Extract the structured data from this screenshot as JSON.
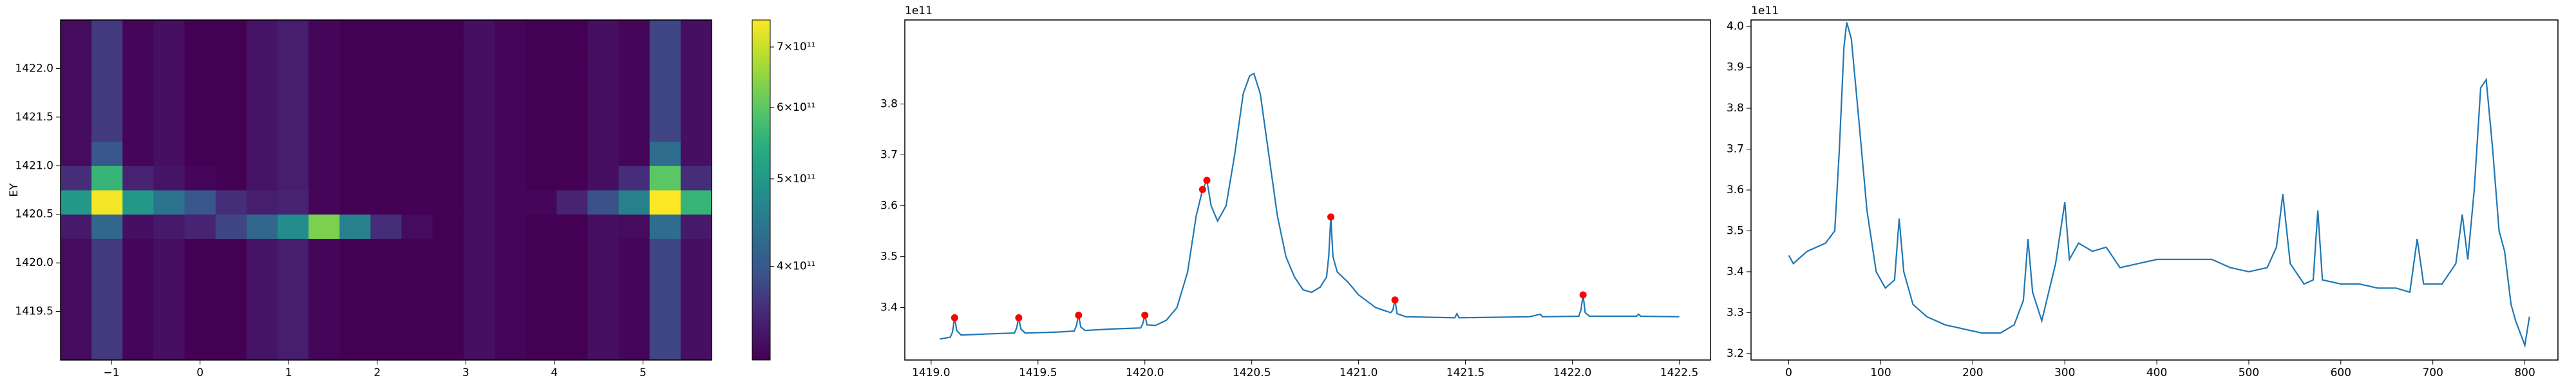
{
  "chart_data": [
    {
      "type": "heatmap",
      "ylabel": "EY",
      "xbins": [
        -1.575,
        -1.225,
        -0.875,
        -0.525,
        -0.175,
        0.175,
        0.525,
        0.875,
        1.225,
        1.575,
        1.925,
        2.275,
        2.625,
        2.975,
        3.325,
        3.675,
        4.025,
        4.375,
        4.725,
        5.075,
        5.425,
        5.775
      ],
      "ybins": [
        1419.0,
        1419.25,
        1419.5,
        1419.75,
        1420.0,
        1420.25,
        1420.5,
        1420.75,
        1421.0,
        1421.25,
        1421.5,
        1421.75,
        1422.0,
        1422.25,
        1422.5
      ],
      "z": [
        [
          325000000000.0,
          370000000000.0,
          320000000000.0,
          330000000000.0,
          315000000000.0,
          315000000000.0,
          335000000000.0,
          345000000000.0,
          320000000000.0,
          315000000000.0,
          315000000000.0,
          315000000000.0,
          315000000000.0,
          330000000000.0,
          320000000000.0,
          315000000000.0,
          315000000000.0,
          330000000000.0,
          320000000000.0,
          380000000000.0,
          330000000000.0
        ],
        [
          325000000000.0,
          370000000000.0,
          320000000000.0,
          330000000000.0,
          315000000000.0,
          315000000000.0,
          335000000000.0,
          345000000000.0,
          320000000000.0,
          315000000000.0,
          315000000000.0,
          315000000000.0,
          315000000000.0,
          330000000000.0,
          320000000000.0,
          315000000000.0,
          315000000000.0,
          330000000000.0,
          320000000000.0,
          380000000000.0,
          330000000000.0
        ],
        [
          325000000000.0,
          370000000000.0,
          320000000000.0,
          330000000000.0,
          315000000000.0,
          315000000000.0,
          335000000000.0,
          345000000000.0,
          320000000000.0,
          315000000000.0,
          315000000000.0,
          315000000000.0,
          315000000000.0,
          330000000000.0,
          320000000000.0,
          315000000000.0,
          315000000000.0,
          330000000000.0,
          320000000000.0,
          380000000000.0,
          330000000000.0
        ],
        [
          325000000000.0,
          370000000000.0,
          320000000000.0,
          330000000000.0,
          315000000000.0,
          315000000000.0,
          335000000000.0,
          345000000000.0,
          320000000000.0,
          315000000000.0,
          315000000000.0,
          315000000000.0,
          315000000000.0,
          330000000000.0,
          320000000000.0,
          315000000000.0,
          315000000000.0,
          330000000000.0,
          320000000000.0,
          380000000000.0,
          330000000000.0
        ],
        [
          325000000000.0,
          370000000000.0,
          320000000000.0,
          330000000000.0,
          315000000000.0,
          315000000000.0,
          335000000000.0,
          345000000000.0,
          320000000000.0,
          315000000000.0,
          315000000000.0,
          315000000000.0,
          315000000000.0,
          330000000000.0,
          320000000000.0,
          315000000000.0,
          315000000000.0,
          330000000000.0,
          320000000000.0,
          380000000000.0,
          330000000000.0
        ],
        [
          340000000000.0,
          420000000000.0,
          330000000000.0,
          340000000000.0,
          350000000000.0,
          380000000000.0,
          420000000000.0,
          480000000000.0,
          630000000000.0,
          460000000000.0,
          360000000000.0,
          325000000000.0,
          315000000000.0,
          330000000000.0,
          320000000000.0,
          315000000000.0,
          315000000000.0,
          330000000000.0,
          325000000000.0,
          430000000000.0,
          340000000000.0
        ],
        [
          500000000000.0,
          740000000000.0,
          500000000000.0,
          440000000000.0,
          400000000000.0,
          360000000000.0,
          345000000000.0,
          350000000000.0,
          320000000000.0,
          315000000000.0,
          315000000000.0,
          315000000000.0,
          315000000000.0,
          330000000000.0,
          320000000000.0,
          320000000000.0,
          350000000000.0,
          390000000000.0,
          460000000000.0,
          750000000000.0,
          560000000000.0
        ],
        [
          360000000000.0,
          560000000000.0,
          350000000000.0,
          335000000000.0,
          320000000000.0,
          315000000000.0,
          335000000000.0,
          345000000000.0,
          320000000000.0,
          315000000000.0,
          315000000000.0,
          315000000000.0,
          315000000000.0,
          330000000000.0,
          320000000000.0,
          315000000000.0,
          315000000000.0,
          330000000000.0,
          360000000000.0,
          600000000000.0,
          360000000000.0
        ],
        [
          325000000000.0,
          400000000000.0,
          320000000000.0,
          330000000000.0,
          315000000000.0,
          315000000000.0,
          335000000000.0,
          345000000000.0,
          320000000000.0,
          315000000000.0,
          315000000000.0,
          315000000000.0,
          315000000000.0,
          330000000000.0,
          320000000000.0,
          315000000000.0,
          315000000000.0,
          330000000000.0,
          320000000000.0,
          430000000000.0,
          330000000000.0
        ],
        [
          325000000000.0,
          370000000000.0,
          320000000000.0,
          330000000000.0,
          315000000000.0,
          315000000000.0,
          335000000000.0,
          345000000000.0,
          320000000000.0,
          315000000000.0,
          315000000000.0,
          315000000000.0,
          315000000000.0,
          330000000000.0,
          320000000000.0,
          315000000000.0,
          315000000000.0,
          330000000000.0,
          320000000000.0,
          380000000000.0,
          330000000000.0
        ],
        [
          325000000000.0,
          370000000000.0,
          320000000000.0,
          330000000000.0,
          315000000000.0,
          315000000000.0,
          335000000000.0,
          345000000000.0,
          320000000000.0,
          315000000000.0,
          315000000000.0,
          315000000000.0,
          315000000000.0,
          330000000000.0,
          320000000000.0,
          315000000000.0,
          315000000000.0,
          330000000000.0,
          320000000000.0,
          380000000000.0,
          330000000000.0
        ],
        [
          325000000000.0,
          370000000000.0,
          320000000000.0,
          330000000000.0,
          315000000000.0,
          315000000000.0,
          335000000000.0,
          345000000000.0,
          320000000000.0,
          315000000000.0,
          315000000000.0,
          315000000000.0,
          315000000000.0,
          330000000000.0,
          320000000000.0,
          315000000000.0,
          315000000000.0,
          330000000000.0,
          320000000000.0,
          380000000000.0,
          330000000000.0
        ],
        [
          325000000000.0,
          370000000000.0,
          320000000000.0,
          330000000000.0,
          315000000000.0,
          315000000000.0,
          335000000000.0,
          345000000000.0,
          320000000000.0,
          315000000000.0,
          315000000000.0,
          315000000000.0,
          315000000000.0,
          330000000000.0,
          320000000000.0,
          315000000000.0,
          315000000000.0,
          330000000000.0,
          320000000000.0,
          380000000000.0,
          330000000000.0
        ],
        [
          325000000000.0,
          370000000000.0,
          320000000000.0,
          330000000000.0,
          315000000000.0,
          315000000000.0,
          335000000000.0,
          345000000000.0,
          320000000000.0,
          315000000000.0,
          315000000000.0,
          315000000000.0,
          315000000000.0,
          330000000000.0,
          320000000000.0,
          315000000000.0,
          315000000000.0,
          330000000000.0,
          320000000000.0,
          380000000000.0,
          330000000000.0
        ]
      ],
      "xlim": [
        -1.575,
        5.775
      ],
      "ylim": [
        1419.0,
        1422.5
      ],
      "xticks": [
        {
          "value": -1,
          "label": "−1"
        },
        0,
        1,
        2,
        3,
        4,
        5
      ],
      "yticks": [
        1419.5,
        {
          "value": 1420,
          "label": "1420.0"
        },
        1420.5,
        {
          "value": 1421,
          "label": "1421.0"
        },
        1421.5,
        {
          "value": 1422,
          "label": "1422.0"
        }
      ],
      "colorbar": {
        "colormap": "viridis",
        "scale": "log",
        "lim": [
          315000000000.0,
          750000000000.0
        ],
        "ticks": [
          {
            "value": 400000000000.0,
            "label": "4×10¹¹"
          },
          {
            "value": 500000000000.0,
            "label": "5×10¹¹"
          },
          {
            "value": 600000000000.0,
            "label": "6×10¹¹"
          },
          {
            "value": 700000000000.0,
            "label": "7×10¹¹"
          }
        ]
      }
    },
    {
      "type": "line",
      "offset_label": "1e11",
      "x": [
        1419.04,
        1419.09,
        1419.1,
        1419.11,
        1419.12,
        1419.14,
        1419.25,
        1419.39,
        1419.4,
        1419.41,
        1419.42,
        1419.44,
        1419.6,
        1419.67,
        1419.68,
        1419.69,
        1419.7,
        1419.72,
        1419.85,
        1419.98,
        1419.99,
        1420.0,
        1420.01,
        1420.05,
        1420.1,
        1420.15,
        1420.2,
        1420.24,
        1420.27,
        1420.29,
        1420.31,
        1420.34,
        1420.38,
        1420.42,
        1420.46,
        1420.49,
        1420.51,
        1420.54,
        1420.58,
        1420.62,
        1420.66,
        1420.7,
        1420.74,
        1420.78,
        1420.82,
        1420.85,
        1420.86,
        1420.87,
        1420.88,
        1420.9,
        1420.95,
        1421.0,
        1421.08,
        1421.15,
        1421.16,
        1421.17,
        1421.18,
        1421.22,
        1421.45,
        1421.46,
        1421.47,
        1421.8,
        1421.85,
        1421.86,
        1422.03,
        1422.04,
        1422.05,
        1422.06,
        1422.08,
        1422.3,
        1422.31,
        1422.32,
        1422.5
      ],
      "series": [
        {
          "color": "#1f77b4",
          "values": [
            3.338,
            3.342,
            3.352,
            3.38,
            3.355,
            3.346,
            3.348,
            3.35,
            3.36,
            3.38,
            3.358,
            3.35,
            3.352,
            3.354,
            3.365,
            3.385,
            3.362,
            3.355,
            3.358,
            3.36,
            3.368,
            3.385,
            3.366,
            3.365,
            3.375,
            3.4,
            3.47,
            3.58,
            3.632,
            3.65,
            3.6,
            3.57,
            3.6,
            3.7,
            3.82,
            3.855,
            3.86,
            3.82,
            3.7,
            3.58,
            3.5,
            3.46,
            3.435,
            3.43,
            3.44,
            3.46,
            3.5,
            3.578,
            3.5,
            3.47,
            3.45,
            3.425,
            3.4,
            3.39,
            3.395,
            3.415,
            3.388,
            3.382,
            3.38,
            3.388,
            3.38,
            3.382,
            3.387,
            3.382,
            3.383,
            3.395,
            3.425,
            3.39,
            3.383,
            3.383,
            3.387,
            3.383,
            3.382
          ]
        }
      ],
      "markers": {
        "color": "#ff0000",
        "x": [
          1419.11,
          1419.41,
          1419.69,
          1420.0,
          1420.27,
          1420.29,
          1420.87,
          1421.17,
          1422.05
        ],
        "values": [
          3.38,
          3.38,
          3.385,
          3.385,
          3.632,
          3.65,
          3.578,
          3.415,
          3.425
        ]
      },
      "xlim": [
        1418.877,
        1422.646
      ],
      "ylim": [
        3.297,
        3.965
      ],
      "xticks": [
        {
          "value": 1419,
          "label": "1419.0"
        },
        1419.5,
        {
          "value": 1420,
          "label": "1420.0"
        },
        1420.5,
        {
          "value": 1421,
          "label": "1421.0"
        },
        1421.5,
        {
          "value": 1422,
          "label": "1422.0"
        },
        1422.5
      ],
      "yticks": [
        3.4,
        3.5,
        3.6,
        3.7,
        3.8
      ]
    },
    {
      "type": "line",
      "offset_label": "1e11",
      "x": [
        0,
        5,
        20,
        40,
        50,
        55,
        60,
        63,
        68,
        75,
        85,
        95,
        105,
        115,
        120,
        125,
        135,
        150,
        170,
        190,
        210,
        230,
        245,
        255,
        260,
        265,
        275,
        290,
        300,
        305,
        315,
        330,
        345,
        360,
        380,
        400,
        420,
        440,
        460,
        480,
        500,
        520,
        530,
        537,
        545,
        560,
        570,
        575,
        580,
        600,
        620,
        640,
        660,
        675,
        683,
        690,
        710,
        725,
        732,
        738,
        745,
        752,
        758,
        765,
        772,
        778,
        785,
        790,
        795,
        800,
        805
      ],
      "series": [
        {
          "color": "#1f77b4",
          "values": [
            3.44,
            3.42,
            3.45,
            3.47,
            3.5,
            3.7,
            3.95,
            4.01,
            3.97,
            3.8,
            3.55,
            3.4,
            3.36,
            3.38,
            3.53,
            3.4,
            3.32,
            3.29,
            3.27,
            3.26,
            3.25,
            3.25,
            3.27,
            3.33,
            3.48,
            3.35,
            3.28,
            3.42,
            3.57,
            3.43,
            3.47,
            3.45,
            3.46,
            3.41,
            3.42,
            3.43,
            3.43,
            3.43,
            3.43,
            3.41,
            3.4,
            3.41,
            3.46,
            3.59,
            3.42,
            3.37,
            3.38,
            3.55,
            3.38,
            3.37,
            3.37,
            3.36,
            3.36,
            3.35,
            3.48,
            3.37,
            3.37,
            3.42,
            3.54,
            3.43,
            3.6,
            3.85,
            3.87,
            3.7,
            3.5,
            3.45,
            3.32,
            3.28,
            3.25,
            3.22,
            3.29
          ]
        }
      ],
      "xlim": [
        -41,
        836
      ],
      "ylim": [
        3.184,
        4.016
      ],
      "xticks": [
        0,
        100,
        200,
        300,
        400,
        500,
        600,
        700,
        800
      ],
      "yticks": [
        3.2,
        3.3,
        3.4,
        3.5,
        3.6,
        3.7,
        3.8,
        3.9,
        {
          "value": 4,
          "label": "4.0"
        }
      ]
    }
  ]
}
